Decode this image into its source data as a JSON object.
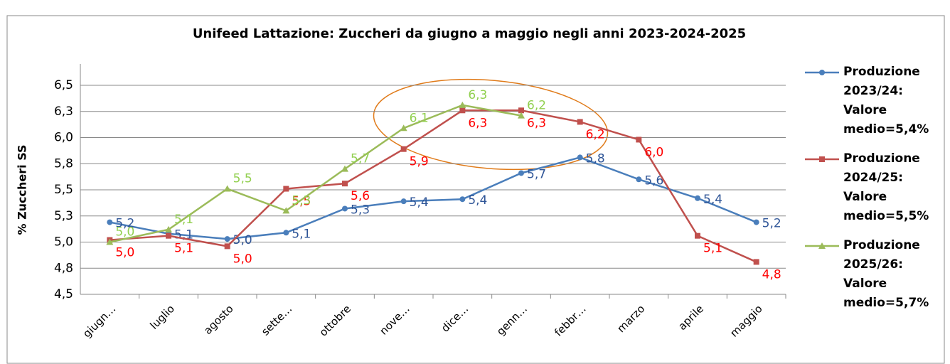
{
  "chart_data": {
    "type": "line",
    "title": "Unifeed Lattazione: Zuccheri da giugno a maggio negli anni 2023-2024-2025",
    "y_label": "% Zuccheri SS",
    "categories": [
      "giugn…",
      "luglio",
      "agosto",
      "sette…",
      "ottobre",
      "nove…",
      "dice…",
      "genn…",
      "febbr…",
      "marzo",
      "aprile",
      "maggio"
    ],
    "ylim": [
      4.5,
      6.5
    ],
    "yticks": [
      {
        "value": 4.5,
        "label": "4,5"
      },
      {
        "value": 4.75,
        "label": "4,8"
      },
      {
        "value": 5.0,
        "label": "5,0"
      },
      {
        "value": 5.25,
        "label": "5,3"
      },
      {
        "value": 5.5,
        "label": "5,5"
      },
      {
        "value": 5.75,
        "label": "5,8"
      },
      {
        "value": 6.0,
        "label": "6,0"
      },
      {
        "value": 6.25,
        "label": "6,3"
      },
      {
        "value": 6.5,
        "label": "6,5"
      }
    ],
    "grid": true,
    "legend": "right",
    "series": [
      {
        "name": "Produzione 2023/24: Valore medio=5,4%",
        "color": "#4a7ebb",
        "label_color": "#2f5597",
        "marker": "circle",
        "values": [
          5.19,
          5.08,
          5.03,
          5.09,
          5.32,
          5.39,
          5.41,
          5.66,
          5.81,
          5.6,
          5.42,
          5.19
        ],
        "value_labels": [
          "5,2",
          "5,1",
          "5,0",
          "5,1",
          "5,3",
          "5,4",
          "5,4",
          "5,7",
          "5,8",
          "5,6",
          "5,4",
          "5,2"
        ]
      },
      {
        "name": "Produzione 2024/25: Valore medio=5,5%",
        "color": "#c0504d",
        "label_color": "#ff0000",
        "marker": "square",
        "values": [
          5.02,
          5.06,
          4.96,
          5.51,
          5.56,
          5.89,
          6.26,
          6.26,
          6.15,
          5.98,
          5.06,
          4.81
        ],
        "value_labels": [
          "5,0",
          "5,1",
          "5,0",
          "5,5",
          "5,6",
          "5,9",
          "6,3",
          "6,3",
          "6,2",
          "6,0",
          "5,1",
          "4,8"
        ]
      },
      {
        "name": "Produzione 2025/26: Valore medio=5,7%",
        "color": "#9bbb59",
        "label_color": "#92d050",
        "marker": "triangle",
        "values": [
          5.0,
          5.12,
          5.51,
          5.3,
          5.7,
          6.09,
          6.31,
          6.21,
          null,
          null,
          null,
          null
        ],
        "value_labels": [
          "5,0",
          "5,1",
          "5,5",
          "5,3",
          "5,7",
          "6,1",
          "6,3",
          "6,2",
          null,
          null,
          null,
          null
        ]
      }
    ]
  }
}
